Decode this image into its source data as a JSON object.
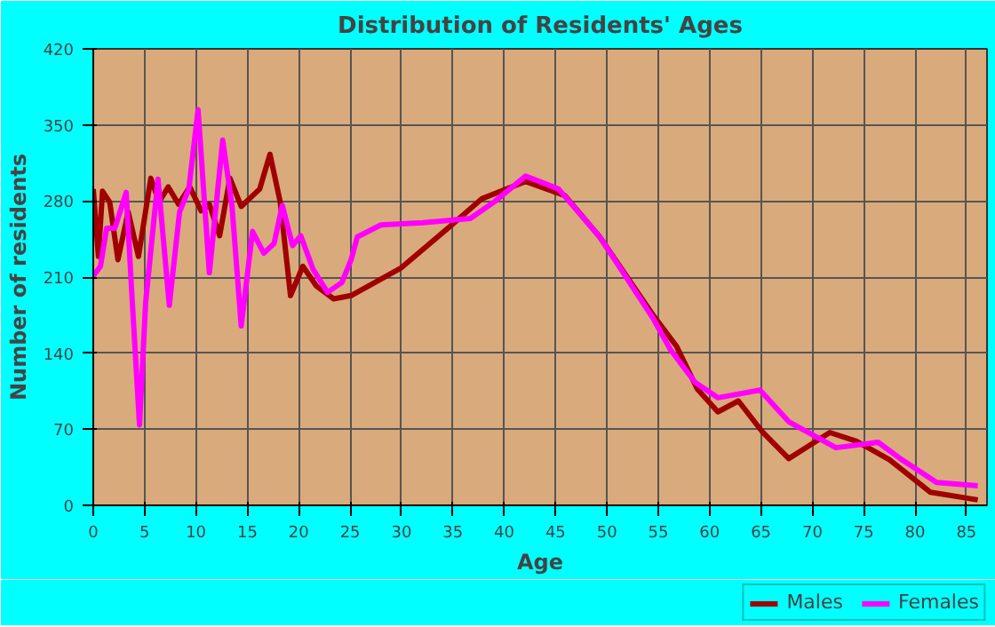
{
  "chart_data": {
    "type": "line",
    "title": "Distribution of Residents' Ages",
    "xlabel": "Age",
    "ylabel": "Number of residents",
    "xlim": [
      0,
      87
    ],
    "xticks": [
      0,
      5,
      10,
      15,
      20,
      25,
      30,
      35,
      40,
      45,
      50,
      55,
      60,
      65,
      70,
      75,
      80,
      85
    ],
    "ylim": [
      0,
      420
    ],
    "yticks": [
      0,
      70,
      140,
      210,
      280,
      350,
      420
    ],
    "grid": true,
    "legend": "bottom",
    "marker": "none",
    "line_style": "solid",
    "series": [
      {
        "name": "Males",
        "color": "#a00000",
        "x": [
          0,
          0.5,
          0.9,
          1.6,
          2.4,
          3.4,
          4.4,
          5.6,
          6.4,
          7.3,
          8.3,
          9.4,
          10.5,
          11.3,
          12.3,
          13.3,
          14.4,
          15.3,
          16.2,
          17.2,
          18.2,
          19.2,
          20.4,
          21.7,
          23.4,
          25.1,
          29.9,
          34.9,
          37.8,
          42.1,
          45.9,
          49.3,
          54.5,
          56.8,
          58.8,
          60.8,
          62.8,
          65.1,
          67.7,
          71.7,
          74.3,
          77.5,
          81.5,
          86.1
        ],
        "values": [
          291,
          229,
          289,
          279,
          226,
          270,
          229,
          301,
          279,
          293,
          277,
          293,
          271,
          277,
          248,
          301,
          275,
          283,
          291,
          323,
          279,
          193,
          220,
          202,
          190,
          193,
          218,
          258,
          282,
          298,
          285,
          247,
          175,
          146,
          107,
          86,
          96,
          68,
          43,
          67,
          59,
          42,
          12,
          5
        ]
      },
      {
        "name": "Females",
        "color": "#ff00ff",
        "x": [
          0,
          0.7,
          1.3,
          2.1,
          3.2,
          3.8,
          4.5,
          5.1,
          6.3,
          7.4,
          8.4,
          9.3,
          10.2,
          11.3,
          12.6,
          13.5,
          14.4,
          15.5,
          16.6,
          17.6,
          18.4,
          19.4,
          20.2,
          21.4,
          22.8,
          24.2,
          25.1,
          25.7,
          28.0,
          32.1,
          36.7,
          39.0,
          42.1,
          45.3,
          49.3,
          54.5,
          56.2,
          58.6,
          60.8,
          64.9,
          67.7,
          72.3,
          76.4,
          78.7,
          82.1,
          86.1
        ],
        "values": [
          211,
          220,
          255,
          255,
          288,
          187,
          74,
          187,
          300,
          184,
          270,
          291,
          364,
          214,
          336,
          276,
          165,
          252,
          232,
          241,
          276,
          239,
          248,
          217,
          196,
          205,
          226,
          247,
          258,
          260,
          264,
          279,
          303,
          291,
          247,
          172,
          143,
          113,
          99,
          106,
          77,
          53,
          58,
          42,
          21,
          18
        ]
      }
    ]
  }
}
